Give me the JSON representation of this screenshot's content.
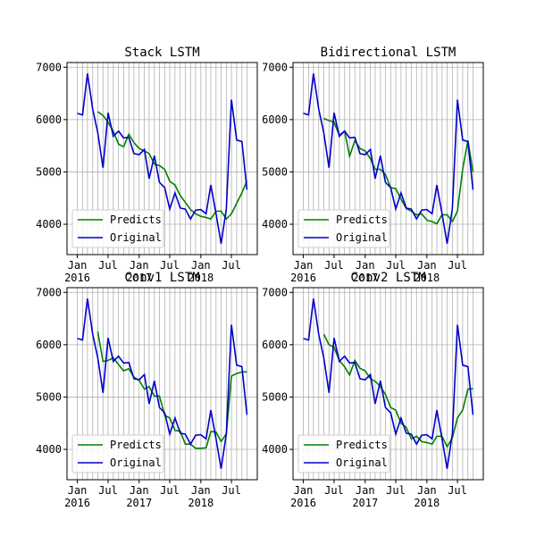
{
  "chart_data": [
    {
      "type": "line",
      "title": "Stack LSTM",
      "x": [
        "2016-01",
        "2016-02",
        "2016-03",
        "2016-04",
        "2016-05",
        "2016-06",
        "2016-07",
        "2016-08",
        "2016-09",
        "2016-10",
        "2016-11",
        "2016-12",
        "2017-01",
        "2017-02",
        "2017-03",
        "2017-04",
        "2017-05",
        "2017-06",
        "2017-07",
        "2017-08",
        "2017-09",
        "2017-10",
        "2017-11",
        "2017-12",
        "2018-01",
        "2018-02",
        "2018-03",
        "2018-04",
        "2018-05",
        "2018-06",
        "2018-07",
        "2018-08",
        "2018-09",
        "2018-10"
      ],
      "series": [
        {
          "name": "Predicts",
          "color": "#008000",
          "values": [
            null,
            null,
            null,
            null,
            6150,
            6080,
            5950,
            5780,
            5530,
            5480,
            5720,
            5560,
            5450,
            5400,
            5350,
            5150,
            5120,
            5050,
            4820,
            4750,
            4550,
            4420,
            4280,
            4200,
            4150,
            4130,
            4100,
            4250,
            4250,
            4100,
            4200,
            4400,
            4600,
            4830
          ]
        },
        {
          "name": "Original",
          "color": "#0000cc",
          "values": [
            6120,
            6090,
            6880,
            6200,
            5750,
            5080,
            6130,
            5680,
            5780,
            5650,
            5660,
            5350,
            5330,
            5430,
            4870,
            5310,
            4800,
            4700,
            4290,
            4600,
            4310,
            4290,
            4100,
            4270,
            4280,
            4200,
            4750,
            4200,
            3630,
            4300,
            6380,
            5610,
            5580,
            4660
          ]
        }
      ],
      "xlim": [
        "2015-11",
        "2018-12"
      ],
      "ylim": [
        3420,
        7090
      ],
      "xticks": [
        {
          "value": "2016-01",
          "label": "Jan 2016"
        },
        {
          "value": "2016-07",
          "label": "Jul"
        },
        {
          "value": "2017-01",
          "label": "Jan 2017"
        },
        {
          "value": "2017-07",
          "label": "Jul"
        },
        {
          "value": "2018-01",
          "label": "Jan 2018"
        },
        {
          "value": "2018-07",
          "label": "Jul"
        }
      ],
      "yticks": [
        4000,
        5000,
        6000,
        7000
      ],
      "grid": true,
      "legend": "lower left"
    },
    {
      "type": "line",
      "title": "Bidirectional LSTM",
      "x": [
        "2016-01",
        "2016-02",
        "2016-03",
        "2016-04",
        "2016-05",
        "2016-06",
        "2016-07",
        "2016-08",
        "2016-09",
        "2016-10",
        "2016-11",
        "2016-12",
        "2017-01",
        "2017-02",
        "2017-03",
        "2017-04",
        "2017-05",
        "2017-06",
        "2017-07",
        "2017-08",
        "2017-09",
        "2017-10",
        "2017-11",
        "2017-12",
        "2018-01",
        "2018-02",
        "2018-03",
        "2018-04",
        "2018-05",
        "2018-06",
        "2018-07",
        "2018-08",
        "2018-09",
        "2018-10"
      ],
      "series": [
        {
          "name": "Predicts",
          "color": "#008000",
          "values": [
            null,
            null,
            null,
            null,
            6020,
            5980,
            5950,
            5700,
            5780,
            5300,
            5600,
            5450,
            5400,
            5250,
            5050,
            5050,
            4950,
            4700,
            4680,
            4480,
            4300,
            4250,
            4180,
            4200,
            4080,
            4050,
            4010,
            4180,
            4180,
            4050,
            4250,
            5050,
            5600,
            5000
          ]
        },
        {
          "name": "Original",
          "color": "#0000cc",
          "values": [
            6120,
            6090,
            6880,
            6200,
            5750,
            5080,
            6130,
            5680,
            5780,
            5650,
            5660,
            5350,
            5330,
            5430,
            4870,
            5310,
            4800,
            4700,
            4290,
            4600,
            4310,
            4290,
            4100,
            4270,
            4280,
            4200,
            4750,
            4200,
            3630,
            4300,
            6380,
            5610,
            5580,
            4660
          ]
        }
      ],
      "xlim": [
        "2015-11",
        "2018-12"
      ],
      "ylim": [
        3420,
        7090
      ],
      "xticks": [
        {
          "value": "2016-01",
          "label": "Jan 2016"
        },
        {
          "value": "2016-07",
          "label": "Jul"
        },
        {
          "value": "2017-01",
          "label": "Jan 2017"
        },
        {
          "value": "2017-07",
          "label": "Jul"
        },
        {
          "value": "2018-01",
          "label": "Jan 2018"
        },
        {
          "value": "2018-07",
          "label": "Jul"
        }
      ],
      "yticks": [
        4000,
        5000,
        6000,
        7000
      ],
      "grid": true,
      "legend": "lower left"
    },
    {
      "type": "line",
      "title": "Conv1 LSTM",
      "x": [
        "2016-01",
        "2016-02",
        "2016-03",
        "2016-04",
        "2016-05",
        "2016-06",
        "2016-07",
        "2016-08",
        "2016-09",
        "2016-10",
        "2016-11",
        "2016-12",
        "2017-01",
        "2017-02",
        "2017-03",
        "2017-04",
        "2017-05",
        "2017-06",
        "2017-07",
        "2017-08",
        "2017-09",
        "2017-10",
        "2017-11",
        "2017-12",
        "2018-01",
        "2018-02",
        "2018-03",
        "2018-04",
        "2018-05",
        "2018-06",
        "2018-07",
        "2018-08",
        "2018-09",
        "2018-10"
      ],
      "series": [
        {
          "name": "Predicts",
          "color": "#008000",
          "values": [
            null,
            null,
            null,
            null,
            6250,
            5680,
            5700,
            5750,
            5620,
            5500,
            5540,
            5380,
            5320,
            5150,
            5200,
            5020,
            5020,
            4650,
            4600,
            4360,
            4350,
            4100,
            4100,
            4020,
            4020,
            4030,
            4340,
            4330,
            4150,
            4300,
            5400,
            5450,
            5480,
            5480
          ]
        },
        {
          "name": "Original",
          "color": "#0000cc",
          "values": [
            6120,
            6090,
            6880,
            6200,
            5750,
            5080,
            6130,
            5680,
            5780,
            5650,
            5660,
            5350,
            5330,
            5430,
            4870,
            5310,
            4800,
            4700,
            4290,
            4600,
            4310,
            4290,
            4100,
            4270,
            4280,
            4200,
            4750,
            4200,
            3630,
            4300,
            6380,
            5610,
            5580,
            4660
          ]
        }
      ],
      "xlim": [
        "2015-11",
        "2018-12"
      ],
      "ylim": [
        3420,
        7090
      ],
      "xticks": [
        {
          "value": "2016-01",
          "label": "Jan 2016"
        },
        {
          "value": "2016-07",
          "label": "Jul"
        },
        {
          "value": "2017-01",
          "label": "Jan 2017"
        },
        {
          "value": "2017-07",
          "label": "Jul"
        },
        {
          "value": "2018-01",
          "label": "Jan 2018"
        },
        {
          "value": "2018-07",
          "label": "Jul"
        }
      ],
      "yticks": [
        4000,
        5000,
        6000,
        7000
      ],
      "grid": true,
      "legend": "lower left"
    },
    {
      "type": "line",
      "title": "Conv2 LSTM",
      "x": [
        "2016-01",
        "2016-02",
        "2016-03",
        "2016-04",
        "2016-05",
        "2016-06",
        "2016-07",
        "2016-08",
        "2016-09",
        "2016-10",
        "2016-11",
        "2016-12",
        "2017-01",
        "2017-02",
        "2017-03",
        "2017-04",
        "2017-05",
        "2017-06",
        "2017-07",
        "2017-08",
        "2017-09",
        "2017-10",
        "2017-11",
        "2017-12",
        "2018-01",
        "2018-02",
        "2018-03",
        "2018-04",
        "2018-05",
        "2018-06",
        "2018-07",
        "2018-08",
        "2018-09",
        "2018-10"
      ],
      "series": [
        {
          "name": "Predicts",
          "color": "#008000",
          "values": [
            null,
            null,
            null,
            null,
            6200,
            6000,
            5950,
            5700,
            5580,
            5420,
            5700,
            5550,
            5500,
            5350,
            5300,
            5200,
            5050,
            4800,
            4750,
            4500,
            4420,
            4200,
            4250,
            4150,
            4130,
            4100,
            4250,
            4250,
            4050,
            4220,
            4600,
            4750,
            5150,
            5160
          ]
        },
        {
          "name": "Original",
          "color": "#0000cc",
          "values": [
            6120,
            6090,
            6880,
            6200,
            5750,
            5080,
            6130,
            5680,
            5780,
            5650,
            5660,
            5350,
            5330,
            5430,
            4870,
            5310,
            4800,
            4700,
            4290,
            4600,
            4310,
            4290,
            4100,
            4270,
            4280,
            4200,
            4750,
            4200,
            3630,
            4300,
            6380,
            5610,
            5580,
            4660
          ]
        }
      ],
      "xlim": [
        "2015-11",
        "2018-12"
      ],
      "ylim": [
        3420,
        7090
      ],
      "xticks": [
        {
          "value": "2016-01",
          "label": "Jan 2016"
        },
        {
          "value": "2016-07",
          "label": "Jul"
        },
        {
          "value": "2017-01",
          "label": "Jan 2017"
        },
        {
          "value": "2017-07",
          "label": "Jul"
        },
        {
          "value": "2018-01",
          "label": "Jan 2018"
        },
        {
          "value": "2018-07",
          "label": "Jul"
        }
      ],
      "yticks": [
        4000,
        5000,
        6000,
        7000
      ],
      "grid": true,
      "legend": "lower left"
    }
  ]
}
